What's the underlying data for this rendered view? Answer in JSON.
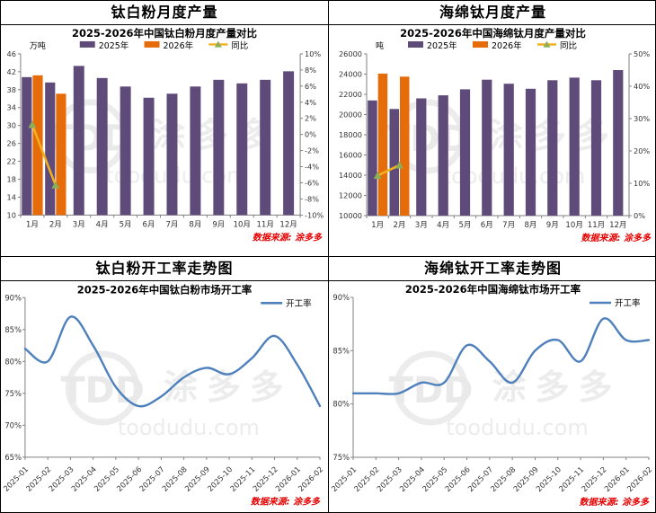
{
  "watermark": {
    "logo": "TDD",
    "brand": "涂多多",
    "domain": "toodudu.com"
  },
  "source_label": "数据来源: 涂多多",
  "colors": {
    "bar_2025": "#5F4B7A",
    "bar_2026": "#E56C09",
    "yoy_line": "#F2B01E",
    "yoy_marker": "#8CAE58",
    "trend_line": "#4E80BC",
    "source_red": "#E60000",
    "axis": "#808080",
    "tick_text": "#333333",
    "watermark_gray": "#ECECEC"
  },
  "panels": [
    {
      "title": "钛白粉月度产量"
    },
    {
      "title": "海绵钛月度产量"
    },
    {
      "title": "钛白粉开工率走势图"
    },
    {
      "title": "海绵钛开工率走势图"
    }
  ],
  "chart_data": [
    {
      "type": "bar",
      "title": "2025-2026年中国钛白粉月度产量对比",
      "unit": "万吨",
      "categories": [
        "1月",
        "2月",
        "3月",
        "4月",
        "5月",
        "6月",
        "7月",
        "8月",
        "9月",
        "10月",
        "11月",
        "12月"
      ],
      "series": [
        {
          "name": "2025年",
          "values": [
            40.8,
            39.6,
            43.3,
            40.6,
            38.7,
            36.2,
            37.1,
            38.7,
            40.2,
            39.4,
            40.2,
            42.1
          ]
        },
        {
          "name": "2026年",
          "values": [
            41.2,
            37.1
          ]
        }
      ],
      "yoy_series": {
        "name": "同比",
        "values": [
          1.2,
          -6.3
        ]
      },
      "y_left": {
        "min": 10,
        "max": 46,
        "step": 4
      },
      "y_right": {
        "min": -10,
        "max": 10,
        "step": 2,
        "suffix": "%"
      },
      "legend_position": "top",
      "grid": false,
      "source": "数据来源: 涂多多"
    },
    {
      "type": "bar",
      "title": "2025-2026年中国海绵钛月度产量对比",
      "unit": "吨",
      "categories": [
        "1月",
        "2月",
        "3月",
        "4月",
        "5月",
        "6月",
        "7月",
        "8月",
        "9月",
        "10月",
        "11月",
        "12月"
      ],
      "series": [
        {
          "name": "2025年",
          "values": [
            21400,
            20550,
            21600,
            21900,
            22500,
            23450,
            23050,
            22550,
            23400,
            23650,
            23400,
            24400
          ]
        },
        {
          "name": "2026年",
          "values": [
            24050,
            23750
          ]
        }
      ],
      "yoy_series": {
        "name": "同比",
        "values": [
          12.4,
          15.6
        ]
      },
      "y_left": {
        "min": 10000,
        "max": 26000,
        "step": 2000
      },
      "y_right": {
        "min": 0,
        "max": 50,
        "step": 10,
        "suffix": "%"
      },
      "legend_position": "top",
      "grid": false,
      "source": "数据来源: 涂多多"
    },
    {
      "type": "line",
      "title": "2025-2026年中国钛白粉市场开工率",
      "legend": "开工率",
      "categories": [
        "2025-01",
        "2025-02",
        "2025-03",
        "2025-04",
        "2025-05",
        "2025-06",
        "2025-07",
        "2025-08",
        "2025-09",
        "2025-10",
        "2025-11",
        "2025-12",
        "2026-01",
        "2026-02"
      ],
      "values": [
        82,
        80,
        87,
        82.5,
        76,
        73,
        74.5,
        77.5,
        79,
        78,
        80.5,
        84,
        79.5,
        73
      ],
      "y": {
        "min": 65,
        "max": 90,
        "step": 5,
        "suffix": "%"
      },
      "legend_position": "top-right",
      "grid": false,
      "source": "数据来源: 涂多多"
    },
    {
      "type": "line",
      "title": "2025-2026年中国海绵钛市场开工率",
      "legend": "开工率",
      "categories": [
        "2025-01",
        "2025-02",
        "2025-03",
        "2025-04",
        "2025-05",
        "2025-06",
        "2025-07",
        "2025-08",
        "2025-09",
        "2025-10",
        "2025-11",
        "2025-12",
        "2026-01",
        "2026-02"
      ],
      "values": [
        81,
        81,
        81,
        82,
        82,
        85.5,
        84,
        82,
        85,
        86,
        84,
        88,
        86,
        86
      ],
      "y": {
        "min": 75,
        "max": 90,
        "step": 5,
        "suffix": "%"
      },
      "legend_position": "top-right",
      "grid": false,
      "source": "数据来源: 涂多多"
    }
  ]
}
